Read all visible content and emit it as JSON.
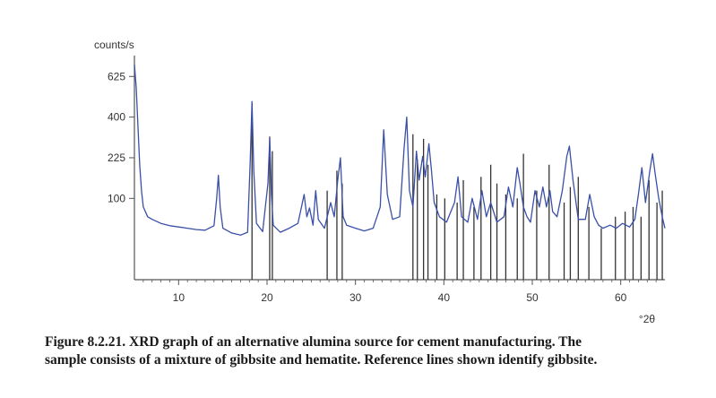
{
  "caption": {
    "line1": "Figure 8.2.21. XRD graph of an alternative alumina source for cement manufacturing. The",
    "line2": "sample consists of a mixture of gibbsite and hematite. Reference lines shown identify gibbsite."
  },
  "colors": {
    "trace": "#3a4fa8",
    "reference": "#333333",
    "axis": "#555555"
  },
  "chart_data": {
    "type": "line",
    "title": "",
    "ylabel": "counts/s",
    "xlabel": "°2θ",
    "y_scale": "sqrt",
    "xlim": [
      5,
      65
    ],
    "ylim": [
      0,
      760
    ],
    "x_ticks": [
      10,
      20,
      30,
      40,
      50,
      60
    ],
    "x_tick_labels": [
      "10",
      "20",
      "30",
      "40",
      "50",
      "60"
    ],
    "y_ticks": [
      100,
      225,
      400,
      625
    ],
    "y_tick_labels": [
      "100",
      "225",
      "400",
      "625"
    ],
    "grid": false,
    "series": [
      {
        "x": [
          5.0,
          5.2,
          5.4,
          5.6,
          5.8,
          6.0,
          6.5,
          7.0,
          8.0,
          9.0,
          10.0,
          11.0,
          12.0,
          13.0,
          14.0,
          14.3,
          14.5,
          14.7,
          15.0,
          16.0,
          17.0,
          17.8,
          18.1,
          18.3,
          18.5,
          18.8,
          19.5,
          20.1,
          20.3,
          20.5,
          20.7,
          21.5,
          22.5,
          23.5,
          24.2,
          24.5,
          24.8,
          25.2,
          25.5,
          25.8,
          26.5,
          27.2,
          27.6,
          28.0,
          28.3,
          28.6,
          29.0,
          30.0,
          31.0,
          32.0,
          32.8,
          33.2,
          33.6,
          34.2,
          35.0,
          35.5,
          35.8,
          36.1,
          36.5,
          36.9,
          37.2,
          37.6,
          37.9,
          38.3,
          38.6,
          38.9,
          39.5,
          40.3,
          41.2,
          41.6,
          42.0,
          42.7,
          43.2,
          43.8,
          44.3,
          44.8,
          45.3,
          46.0,
          46.8,
          47.3,
          47.8,
          48.3,
          48.6,
          49.0,
          49.4,
          49.8,
          50.3,
          50.8,
          51.2,
          51.6,
          52.0,
          52.3,
          52.8,
          53.4,
          53.9,
          54.2,
          54.6,
          55.2,
          56.0,
          56.5,
          57.0,
          57.5,
          58.0,
          58.8,
          59.5,
          60.2,
          61.0,
          61.6,
          62.0,
          62.4,
          62.8,
          63.3,
          63.6,
          63.9,
          64.3,
          64.7,
          65.0
        ],
        "y": [
          700,
          560,
          360,
          200,
          120,
          80,
          60,
          55,
          48,
          44,
          42,
          40,
          38,
          37,
          44,
          100,
          165,
          80,
          40,
          33,
          30,
          34,
          220,
          480,
          180,
          48,
          35,
          140,
          300,
          110,
          45,
          34,
          40,
          48,
          110,
          60,
          78,
          45,
          120,
          55,
          40,
          90,
          60,
          150,
          225,
          60,
          45,
          40,
          36,
          40,
          80,
          340,
          110,
          55,
          60,
          260,
          400,
          120,
          80,
          250,
          150,
          230,
          160,
          280,
          180,
          90,
          60,
          50,
          90,
          160,
          60,
          50,
          100,
          55,
          120,
          60,
          90,
          50,
          60,
          130,
          80,
          190,
          140,
          80,
          60,
          50,
          120,
          80,
          130,
          80,
          120,
          70,
          60,
          120,
          230,
          270,
          150,
          55,
          55,
          110,
          60,
          45,
          40,
          45,
          40,
          48,
          42,
          55,
          110,
          190,
          90,
          180,
          240,
          170,
          100,
          60,
          40
        ]
      }
    ],
    "reference_lines": {
      "x": [
        18.3,
        20.3,
        20.6,
        26.8,
        27.9,
        28.5,
        36.5,
        37.0,
        37.7,
        38.2,
        39.2,
        40.1,
        41.5,
        42.2,
        43.4,
        44.2,
        45.3,
        46.0,
        47.0,
        48.3,
        49.0,
        50.5,
        51.9,
        53.6,
        54.3,
        55.2,
        56.4,
        57.8,
        59.4,
        60.5,
        61.4,
        62.3,
        63.2,
        64.1,
        64.7
      ],
      "y": [
        470,
        310,
        250,
        120,
        180,
        140,
        320,
        220,
        300,
        200,
        110,
        100,
        90,
        150,
        80,
        160,
        200,
        140,
        110,
        100,
        240,
        120,
        200,
        90,
        130,
        160,
        80,
        40,
        60,
        70,
        80,
        60,
        150,
        90,
        120
      ]
    }
  }
}
